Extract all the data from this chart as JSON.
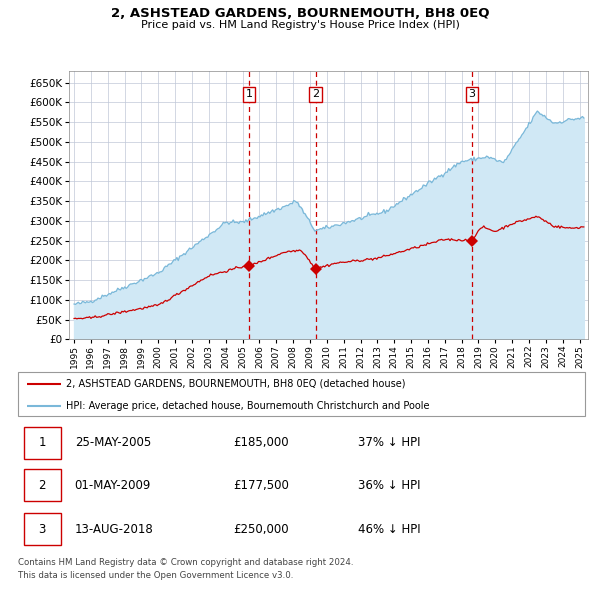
{
  "title": "2, ASHSTEAD GARDENS, BOURNEMOUTH, BH8 0EQ",
  "subtitle": "Price paid vs. HM Land Registry's House Price Index (HPI)",
  "legend_line1": "2, ASHSTEAD GARDENS, BOURNEMOUTH, BH8 0EQ (detached house)",
  "legend_line2": "HPI: Average price, detached house, Bournemouth Christchurch and Poole",
  "footnote1": "Contains HM Land Registry data © Crown copyright and database right 2024.",
  "footnote2": "This data is licensed under the Open Government Licence v3.0.",
  "hpi_color": "#7ab8d9",
  "hpi_fill_color": "#d0e8f5",
  "price_color": "#cc0000",
  "grid_color": "#c0c8d8",
  "transactions": [
    {
      "num": 1,
      "date": "25-MAY-2005",
      "price": 185000,
      "pct": "37%",
      "year": 2005.38
    },
    {
      "num": 2,
      "date": "01-MAY-2009",
      "price": 177500,
      "pct": "36%",
      "year": 2009.33
    },
    {
      "num": 3,
      "date": "13-AUG-2018",
      "price": 250000,
      "pct": "46%",
      "year": 2018.62
    }
  ],
  "ylim": [
    0,
    680000
  ],
  "yticks": [
    0,
    50000,
    100000,
    150000,
    200000,
    250000,
    300000,
    350000,
    400000,
    450000,
    500000,
    550000,
    600000,
    650000
  ],
  "xlim_start": 1994.7,
  "xlim_end": 2025.5
}
